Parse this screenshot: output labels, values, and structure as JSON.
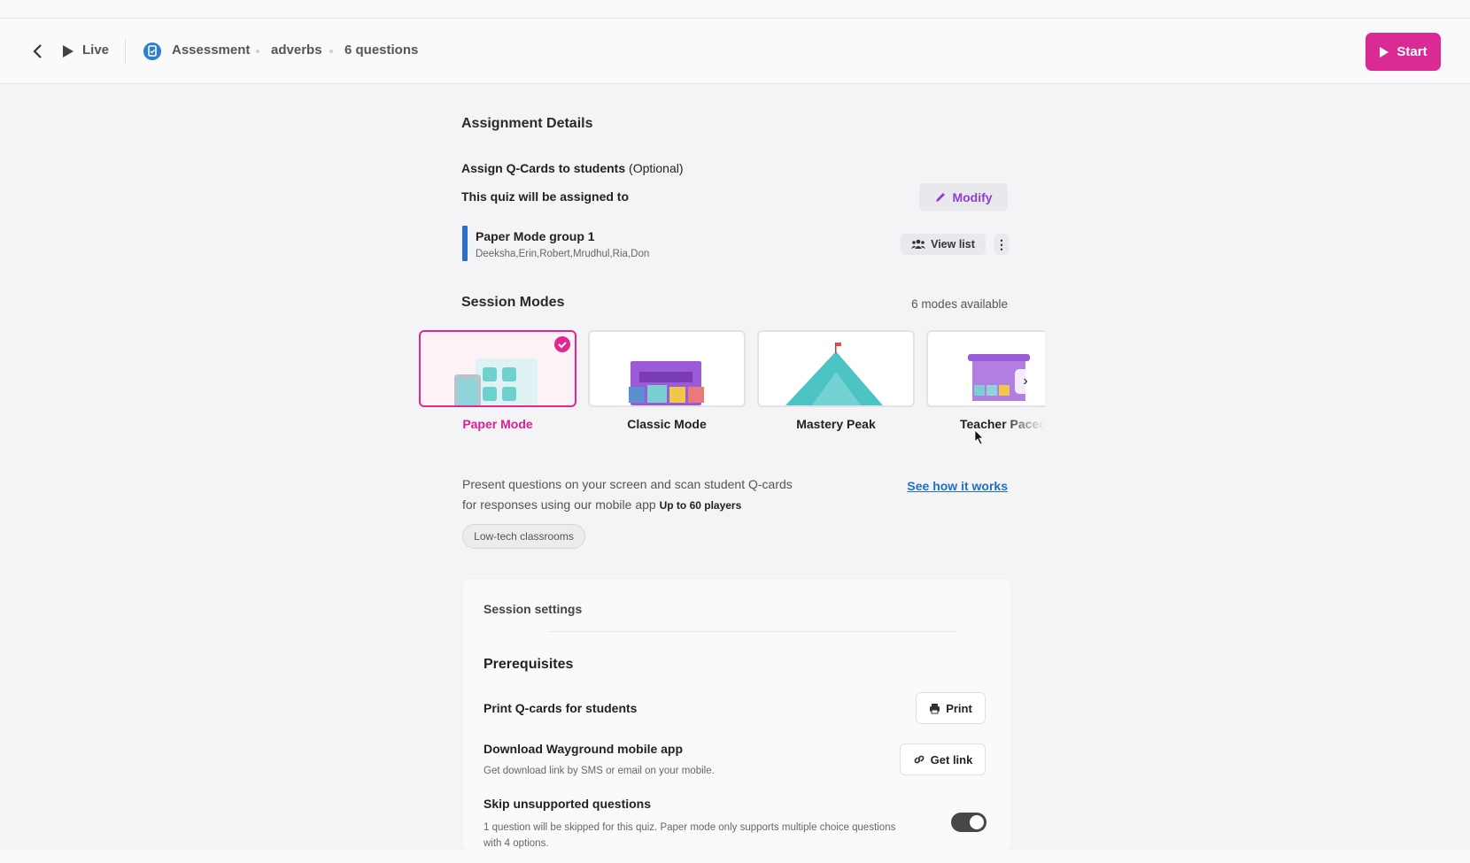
{
  "header": {
    "live_label": "Live",
    "breadcrumb": [
      "Assessment",
      "adverbs",
      "6 questions"
    ],
    "start_label": "Start",
    "accent_color": "#d92b93"
  },
  "assignment": {
    "title": "Assignment Details",
    "assign_qcards": "Assign Q-Cards to students",
    "optional": "(Optional)",
    "assigned_to": "This quiz will be assigned to",
    "modify_label": "Modify",
    "group": {
      "name": "Paper Mode group 1",
      "members": "Deeksha,Erin,Robert,Mrudhul,Ria,Don"
    },
    "view_list_label": "View list"
  },
  "session_modes": {
    "title": "Session Modes",
    "count": "6 modes available",
    "modes": [
      {
        "label": "Paper Mode",
        "selected": true
      },
      {
        "label": "Classic Mode",
        "selected": false
      },
      {
        "label": "Mastery Peak",
        "selected": false
      },
      {
        "label": "Teacher Paced",
        "selected": false
      }
    ],
    "description_1": "Present questions on your screen and scan student Q-cards",
    "description_2": "for responses using our mobile app",
    "players": "Up to 60 players",
    "see_how": "See how it works",
    "tag": "Low-tech classrooms"
  },
  "settings": {
    "title": "Session settings",
    "prereq_title": "Prerequisites",
    "print_label": "Print Q-cards for students",
    "print_button": "Print",
    "download_label": "Download Wayground mobile app",
    "download_sub": "Get download link by SMS or email on your mobile.",
    "get_link_button": "Get link",
    "skip_label": "Skip unsupported questions",
    "skip_sub_1": "1 question will be skipped for this quiz. Paper mode only supports multiple choice questions",
    "skip_sub_2": "with 4 options.",
    "skip_enabled": true
  }
}
